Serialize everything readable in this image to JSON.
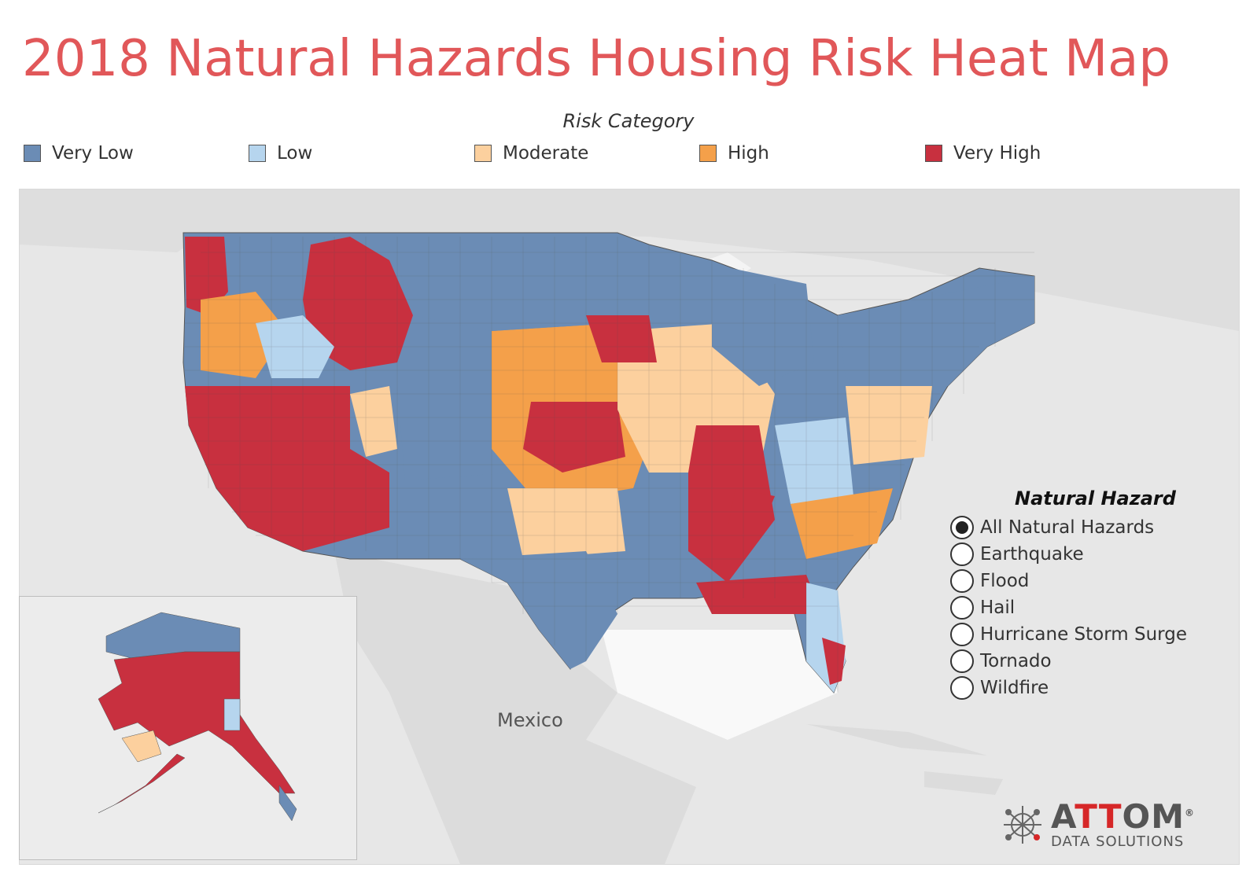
{
  "title": "2018 Natural Hazards Housing Risk Heat Map",
  "legend": {
    "title": "Risk Category",
    "items": [
      {
        "label": "Very Low",
        "color": "#6b8cb5"
      },
      {
        "label": "Low",
        "color": "#b6d5ee"
      },
      {
        "label": "Moderate",
        "color": "#fcd09e"
      },
      {
        "label": "High",
        "color": "#f4a04a"
      },
      {
        "label": "Very High",
        "color": "#c8303f"
      }
    ]
  },
  "map": {
    "place_labels": {
      "mexico": "Mexico"
    }
  },
  "hazard_filter": {
    "title": "Natural Hazard",
    "options": [
      {
        "label": "All Natural Hazards",
        "selected": true
      },
      {
        "label": "Earthquake",
        "selected": false
      },
      {
        "label": "Flood",
        "selected": false
      },
      {
        "label": "Hail",
        "selected": false
      },
      {
        "label": "Hurricane Storm Surge",
        "selected": false
      },
      {
        "label": "Tornado",
        "selected": false
      },
      {
        "label": "Wildfire",
        "selected": false
      }
    ]
  },
  "logo": {
    "name_prefix": "A",
    "name_accent": "TT",
    "name_suffix": "OM",
    "tagline": "DATA SOLUTIONS",
    "mark": "trademark"
  }
}
